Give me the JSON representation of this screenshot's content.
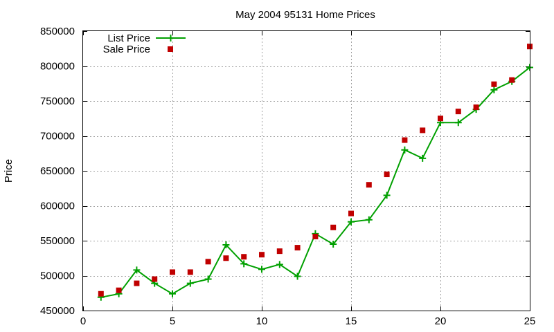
{
  "chart_data": {
    "type": "line",
    "title": "May 2004 95131 Home Prices",
    "xlabel": "",
    "ylabel": "Price",
    "xlim": [
      0,
      25
    ],
    "ylim": [
      450000,
      850000
    ],
    "x_ticks": [
      0,
      5,
      10,
      15,
      20,
      25
    ],
    "y_ticks": [
      450000,
      500000,
      550000,
      600000,
      650000,
      700000,
      750000,
      800000,
      850000
    ],
    "grid": true,
    "legend_position": "top-left",
    "series": [
      {
        "name": "List Price",
        "kind": "line-with-plus-markers",
        "color": "#00a000",
        "x": [
          1,
          2,
          3,
          4,
          5,
          6,
          7,
          8,
          9,
          10,
          11,
          12,
          13,
          14,
          15,
          16,
          17,
          18,
          19,
          20,
          21,
          22,
          23,
          24,
          25
        ],
        "y": [
          469000,
          474000,
          508000,
          489000,
          474000,
          489000,
          495000,
          544000,
          517000,
          509000,
          516000,
          499000,
          560000,
          545000,
          577000,
          580000,
          615000,
          680000,
          668000,
          719000,
          719000,
          738000,
          766000,
          778000,
          798000
        ]
      },
      {
        "name": "Sale Price",
        "kind": "square-points",
        "color": "#c00000",
        "x": [
          1,
          2,
          3,
          4,
          5,
          6,
          7,
          8,
          9,
          10,
          11,
          12,
          13,
          14,
          15,
          16,
          17,
          18,
          19,
          20,
          21,
          22,
          23,
          24,
          25
        ],
        "y": [
          474000,
          479000,
          489000,
          495000,
          505000,
          505000,
          520000,
          525000,
          527000,
          530000,
          535000,
          540000,
          556000,
          569000,
          589000,
          630000,
          645000,
          694000,
          708000,
          725000,
          735000,
          741000,
          774000,
          780000,
          828000
        ]
      }
    ]
  }
}
